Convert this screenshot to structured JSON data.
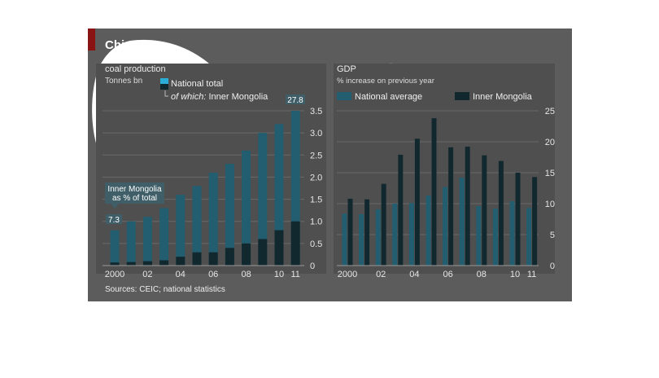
{
  "figure": {
    "title": "China’s:",
    "sources": "Sources: CEIC; national statistics"
  },
  "colors": {
    "panel": "#5c5c5c",
    "plot_bg": "#4f4f4f",
    "national": "#235e70",
    "national_legend": "#2aaed8",
    "inner": "#12282f",
    "highlight": "#ffffff"
  },
  "chart_data": [
    {
      "type": "bar",
      "title": "coal production",
      "subtitle": "Tonnes bn",
      "x_ticks": [
        "2000",
        "02",
        "04",
        "06",
        "08",
        "10",
        "11"
      ],
      "ylim": [
        0,
        3.5
      ],
      "y_ticks": [
        "0",
        "0.5",
        "1.0",
        "1.5",
        "2.0",
        "2.5",
        "3.0",
        "3.5"
      ],
      "grid": true,
      "legend_position": "top-right",
      "categories": [
        "2000",
        "2001",
        "2002",
        "2003",
        "2004",
        "2005",
        "2006",
        "2007",
        "2008",
        "2009",
        "2010",
        "2011"
      ],
      "series": [
        {
          "name": "National total",
          "values": [
            0.8,
            1.0,
            1.1,
            1.3,
            1.6,
            1.8,
            2.1,
            2.3,
            2.6,
            3.0,
            3.2,
            3.5
          ]
        },
        {
          "name": "of which: Inner Mongolia",
          "values": [
            0.07,
            0.08,
            0.1,
            0.12,
            0.2,
            0.3,
            0.3,
            0.4,
            0.5,
            0.6,
            0.8,
            1.0
          ]
        }
      ],
      "legend_prefix": "of which:",
      "legend_main": "Inner Mongolia",
      "annotation_lines": [
        "Inner Mongolia",
        "as % of total"
      ],
      "annotation_first": "7.3",
      "annotation_last": "27.8"
    },
    {
      "type": "bar",
      "title": "GDP",
      "subtitle": "% increase on previous year",
      "x_ticks": [
        "2000",
        "02",
        "04",
        "06",
        "08",
        "10",
        "11"
      ],
      "ylim": [
        0,
        25
      ],
      "y_ticks": [
        "0",
        "5",
        "10",
        "15",
        "20",
        "25"
      ],
      "grid": true,
      "legend_position": "top",
      "categories": [
        "2000",
        "2001",
        "2002",
        "2003",
        "2004",
        "2005",
        "2006",
        "2007",
        "2008",
        "2009",
        "2010",
        "2011"
      ],
      "series": [
        {
          "name": "National average",
          "values": [
            8.4,
            8.3,
            9.1,
            10.0,
            10.1,
            11.3,
            12.7,
            14.2,
            9.6,
            9.2,
            10.4,
            9.3
          ]
        },
        {
          "name": "Inner Mongolia",
          "values": [
            10.8,
            10.7,
            13.2,
            17.9,
            20.5,
            23.8,
            19.1,
            19.2,
            17.8,
            16.9,
            15.0,
            14.3
          ]
        }
      ]
    }
  ]
}
